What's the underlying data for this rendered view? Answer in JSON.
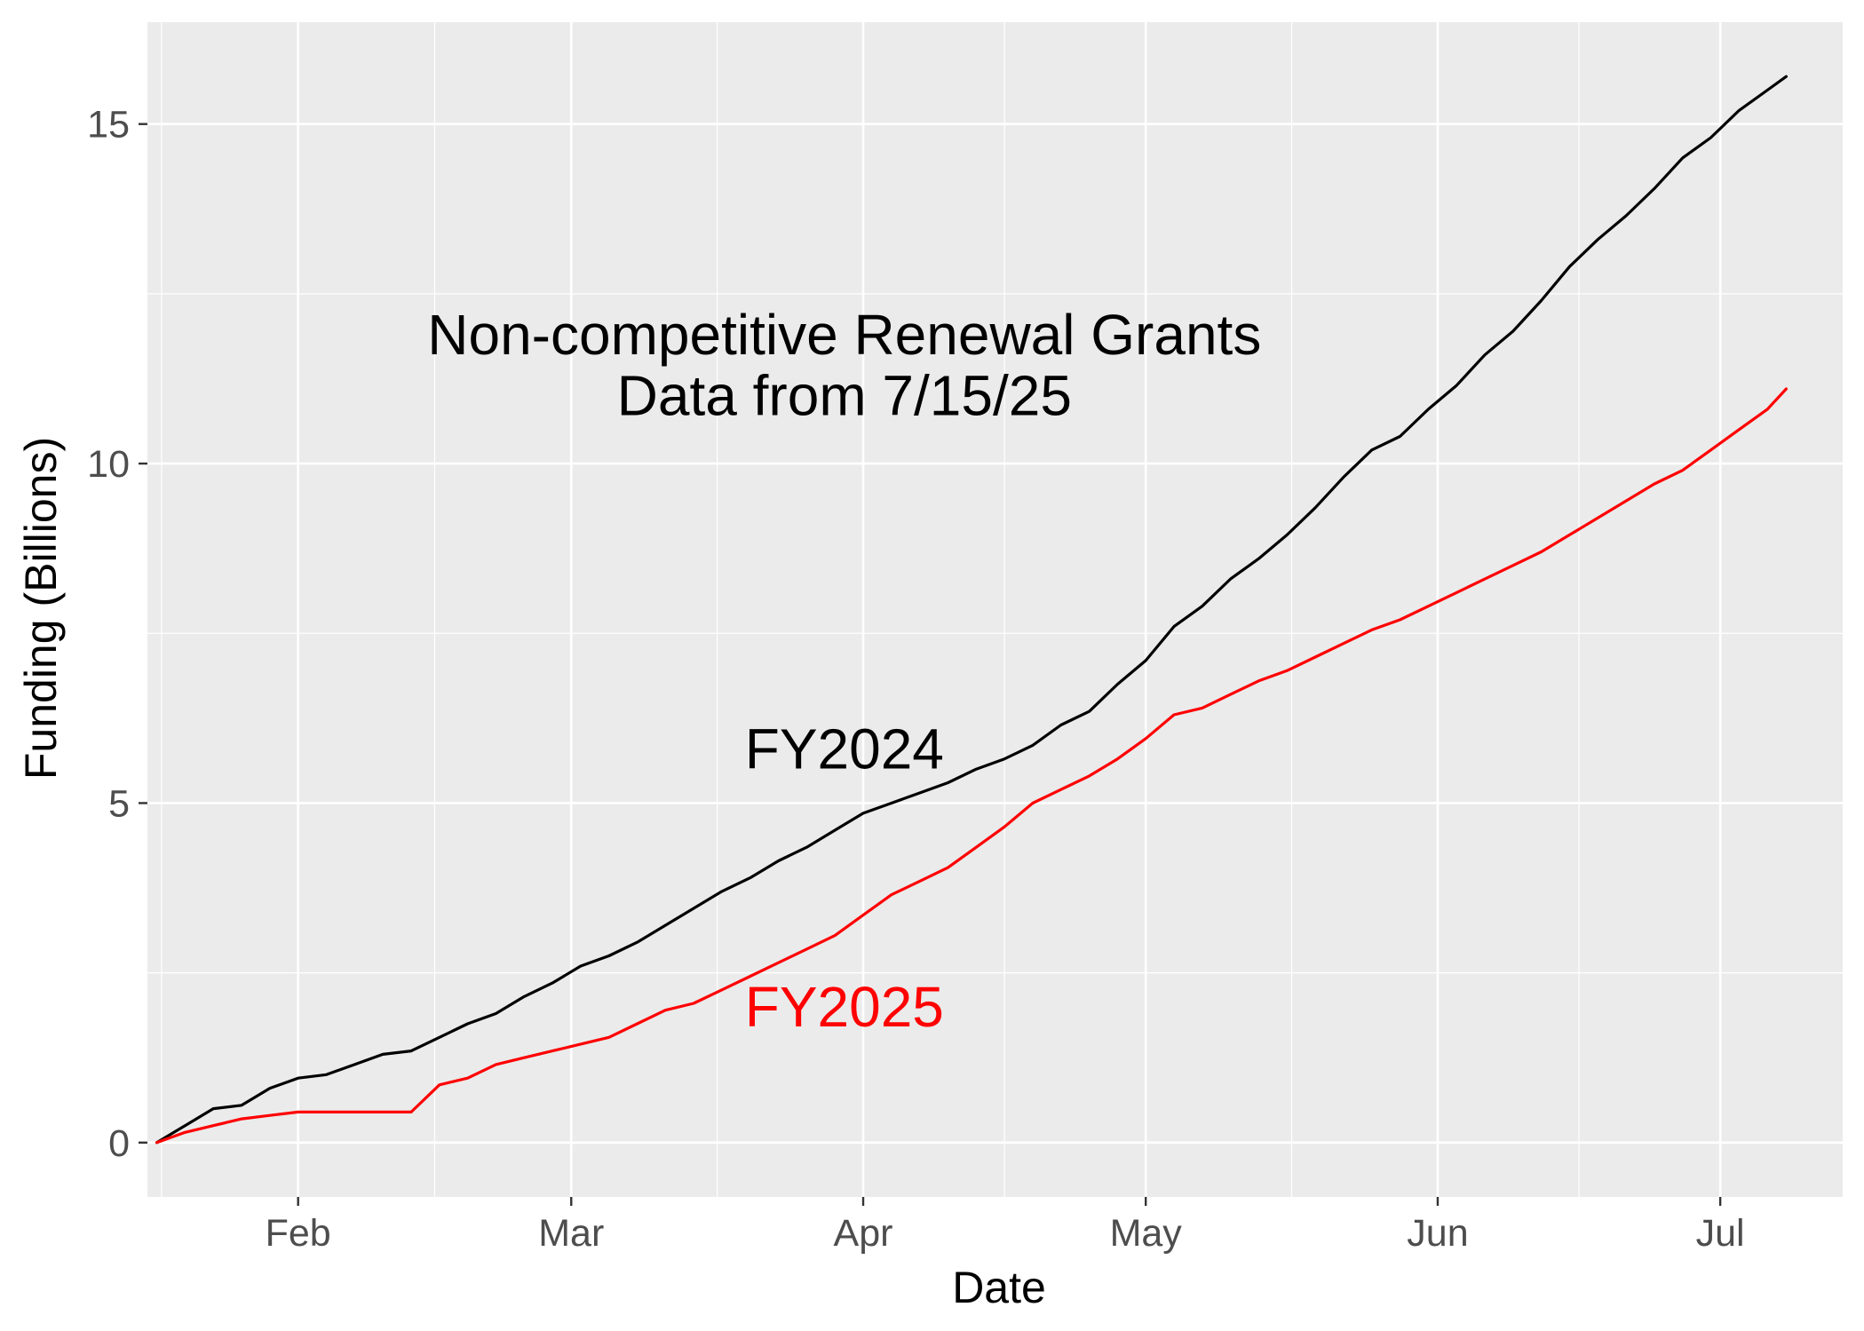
{
  "chart_data": {
    "type": "line",
    "title": "",
    "xlabel": "Date",
    "ylabel": "Funding (Billions)",
    "x_tick_labels": [
      "Feb",
      "Mar",
      "Apr",
      "May",
      "Jun",
      "Jul"
    ],
    "x_ticks": [
      "2000-02-01",
      "2000-03-01",
      "2000-04-01",
      "2000-05-01",
      "2000-06-01",
      "2000-07-01"
    ],
    "xlim": [
      "2000-01-16",
      "2000-07-14"
    ],
    "y_ticks": [
      0,
      5,
      10,
      15
    ],
    "ylim": [
      -0.8,
      16.5
    ],
    "grid": true,
    "legend": "none",
    "annotations": [
      {
        "text": "Non-competitive Renewal Grants",
        "x": "2000-03-30",
        "y": 11.9,
        "color": "#000000"
      },
      {
        "text": "Data from 7/15/25",
        "x": "2000-03-30",
        "y": 11.0,
        "color": "#000000"
      },
      {
        "text": "FY2024",
        "x": "2000-03-30",
        "y": 5.8,
        "color": "#000000"
      },
      {
        "text": "FY2025",
        "x": "2000-03-30",
        "y": 2.0,
        "color": "#ff0000"
      }
    ],
    "series": [
      {
        "name": "FY2024",
        "color": "#000000",
        "x": [
          "2000-01-17",
          "2000-01-20",
          "2000-01-23",
          "2000-01-26",
          "2000-01-29",
          "2000-02-01",
          "2000-02-04",
          "2000-02-07",
          "2000-02-10",
          "2000-02-13",
          "2000-02-16",
          "2000-02-19",
          "2000-02-22",
          "2000-02-25",
          "2000-02-28",
          "2000-03-02",
          "2000-03-05",
          "2000-03-08",
          "2000-03-11",
          "2000-03-14",
          "2000-03-17",
          "2000-03-20",
          "2000-03-23",
          "2000-03-26",
          "2000-03-29",
          "2000-04-01",
          "2000-04-04",
          "2000-04-07",
          "2000-04-10",
          "2000-04-13",
          "2000-04-16",
          "2000-04-19",
          "2000-04-22",
          "2000-04-25",
          "2000-04-28",
          "2000-05-01",
          "2000-05-04",
          "2000-05-07",
          "2000-05-10",
          "2000-05-13",
          "2000-05-16",
          "2000-05-19",
          "2000-05-22",
          "2000-05-25",
          "2000-05-28",
          "2000-05-31",
          "2000-06-03",
          "2000-06-06",
          "2000-06-09",
          "2000-06-12",
          "2000-06-15",
          "2000-06-18",
          "2000-06-21",
          "2000-06-24",
          "2000-06-27",
          "2000-06-30",
          "2000-07-03",
          "2000-07-06",
          "2000-07-08"
        ],
        "y": [
          0.0,
          0.25,
          0.5,
          0.55,
          0.8,
          0.95,
          1.0,
          1.15,
          1.3,
          1.35,
          1.55,
          1.75,
          1.9,
          2.15,
          2.35,
          2.6,
          2.75,
          2.95,
          3.2,
          3.45,
          3.7,
          3.9,
          4.15,
          4.35,
          4.6,
          4.85,
          5.0,
          5.15,
          5.3,
          5.5,
          5.65,
          5.85,
          6.15,
          6.35,
          6.75,
          7.1,
          7.6,
          7.9,
          8.3,
          8.6,
          8.95,
          9.35,
          9.8,
          10.2,
          10.4,
          10.8,
          11.15,
          11.6,
          11.95,
          12.4,
          12.9,
          13.3,
          13.65,
          14.05,
          14.5,
          14.8,
          15.2,
          15.5,
          15.7
        ]
      },
      {
        "name": "FY2025",
        "color": "#ff0000",
        "x": [
          "2000-01-17",
          "2000-01-20",
          "2000-01-23",
          "2000-01-26",
          "2000-01-29",
          "2000-02-01",
          "2000-02-04",
          "2000-02-07",
          "2000-02-10",
          "2000-02-13",
          "2000-02-16",
          "2000-02-19",
          "2000-02-22",
          "2000-02-25",
          "2000-02-28",
          "2000-03-02",
          "2000-03-05",
          "2000-03-08",
          "2000-03-11",
          "2000-03-14",
          "2000-03-17",
          "2000-03-20",
          "2000-03-23",
          "2000-03-26",
          "2000-03-29",
          "2000-04-01",
          "2000-04-04",
          "2000-04-07",
          "2000-04-10",
          "2000-04-13",
          "2000-04-16",
          "2000-04-19",
          "2000-04-22",
          "2000-04-25",
          "2000-04-28",
          "2000-05-01",
          "2000-05-04",
          "2000-05-07",
          "2000-05-10",
          "2000-05-13",
          "2000-05-16",
          "2000-05-19",
          "2000-05-22",
          "2000-05-25",
          "2000-05-28",
          "2000-05-31",
          "2000-06-03",
          "2000-06-06",
          "2000-06-09",
          "2000-06-12",
          "2000-06-15",
          "2000-06-18",
          "2000-06-21",
          "2000-06-24",
          "2000-06-27",
          "2000-06-30",
          "2000-07-03",
          "2000-07-06",
          "2000-07-08"
        ],
        "y": [
          0.0,
          0.15,
          0.25,
          0.35,
          0.4,
          0.45,
          0.45,
          0.45,
          0.45,
          0.45,
          0.85,
          0.95,
          1.15,
          1.25,
          1.35,
          1.45,
          1.55,
          1.75,
          1.95,
          2.05,
          2.25,
          2.45,
          2.65,
          2.85,
          3.05,
          3.35,
          3.65,
          3.85,
          4.05,
          4.35,
          4.65,
          5.0,
          5.2,
          5.4,
          5.65,
          5.95,
          6.3,
          6.4,
          6.6,
          6.8,
          6.95,
          7.15,
          7.35,
          7.55,
          7.7,
          7.9,
          8.1,
          8.3,
          8.5,
          8.7,
          8.95,
          9.2,
          9.45,
          9.7,
          9.9,
          10.2,
          10.5,
          10.8,
          11.1
        ]
      }
    ]
  }
}
